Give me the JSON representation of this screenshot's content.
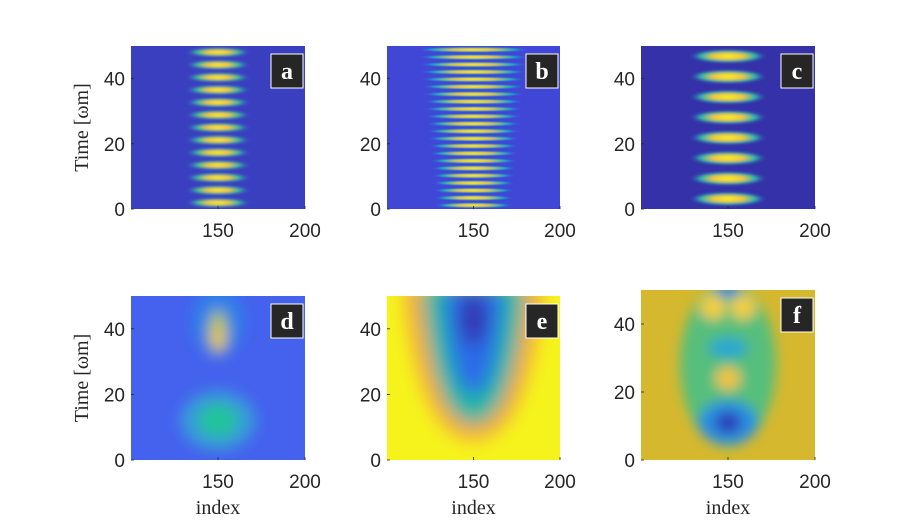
{
  "chart_data": [
    {
      "panel": "a",
      "type": "heatmap",
      "badge": "a",
      "xlim": [
        100,
        200
      ],
      "ylim": [
        0,
        50
      ],
      "xticks": [
        "150",
        "200"
      ],
      "yticks": [
        "0",
        "20",
        "40"
      ],
      "ylabel": "Time",
      "ylabel_unit": "[ωm]",
      "xlabel": "",
      "background": "#3a3fc0",
      "fringe_count": 13,
      "center_index": 150
    },
    {
      "panel": "b",
      "type": "heatmap",
      "badge": "b",
      "xlim": [
        100,
        200
      ],
      "ylim": [
        0,
        50
      ],
      "xticks": [
        "150",
        "200"
      ],
      "yticks": [
        "0",
        "20",
        "40"
      ],
      "ylabel": "",
      "xlabel": "",
      "background": "#4047d6",
      "fringe_count": 22,
      "center_index": 150
    },
    {
      "panel": "c",
      "type": "heatmap",
      "badge": "c",
      "xlim": [
        100,
        200
      ],
      "ylim": [
        0,
        50
      ],
      "xticks": [
        "150",
        "200"
      ],
      "yticks": [
        "0",
        "20",
        "40"
      ],
      "ylabel": "",
      "xlabel": "",
      "background": "#3531a8",
      "fringe_count": 8,
      "center_index": 150
    },
    {
      "panel": "d",
      "type": "heatmap",
      "badge": "d",
      "xlim": [
        100,
        200
      ],
      "ylim": [
        0,
        50
      ],
      "xticks": [
        "150",
        "200"
      ],
      "yticks": [
        "0",
        "20",
        "40"
      ],
      "ylabel": "Time",
      "ylabel_unit": "[ωm]",
      "xlabel": "index",
      "background": "#4462ee",
      "center_index": 150
    },
    {
      "panel": "e",
      "type": "heatmap",
      "badge": "e",
      "xlim": [
        100,
        200
      ],
      "ylim": [
        0,
        50
      ],
      "xticks": [
        "150",
        "200"
      ],
      "yticks": [
        "0",
        "20",
        "40"
      ],
      "ylabel": "",
      "xlabel": "index",
      "background": "#f6f31c",
      "center_index": 150
    },
    {
      "panel": "f",
      "type": "heatmap",
      "badge": "f",
      "xlim": [
        100,
        200
      ],
      "ylim": [
        0,
        50
      ],
      "xticks": [
        "150",
        "200"
      ],
      "yticks": [
        "0",
        "20",
        "40"
      ],
      "ylabel": "",
      "xlabel": "index",
      "background": "#d6b82e",
      "center_index": 150
    }
  ]
}
